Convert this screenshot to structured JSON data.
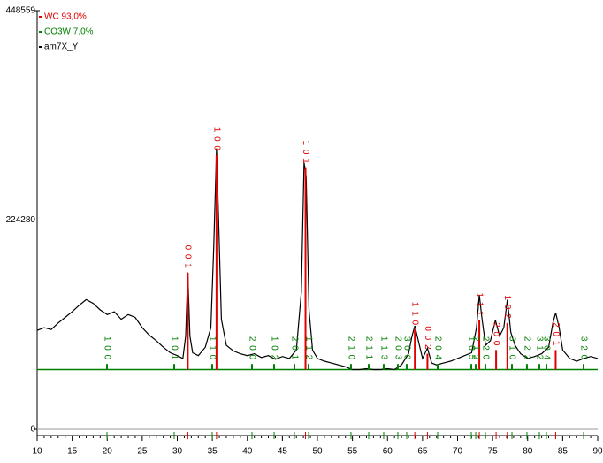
{
  "chart_data": {
    "type": "line",
    "xlim": [
      10,
      90
    ],
    "xticks": [
      10,
      15,
      20,
      25,
      30,
      35,
      40,
      45,
      50,
      55,
      60,
      65,
      70,
      75,
      80,
      85,
      90
    ],
    "ylim": [
      0,
      448559
    ],
    "yticks": [
      0,
      224280,
      448559
    ],
    "background": 64000,
    "background_color": "#008000",
    "series": [
      {
        "name": "am7X_Y",
        "color": "#000000",
        "x": [
          10,
          11,
          12,
          13,
          14,
          15,
          16,
          17,
          18,
          19,
          20,
          21,
          22,
          23,
          24,
          25,
          26,
          27,
          28,
          29,
          30,
          30.8,
          31.2,
          31.5,
          31.8,
          32.2,
          33,
          34,
          34.8,
          35.2,
          35.6,
          35.9,
          36.3,
          37,
          38,
          39,
          40,
          41,
          42,
          43,
          44,
          45,
          46,
          47,
          47.7,
          48.1,
          48.4,
          48.8,
          49.3,
          50,
          51,
          52,
          53,
          54,
          55,
          56,
          57,
          58,
          59,
          60,
          61,
          62,
          63,
          63.5,
          63.9,
          64.4,
          65,
          65.7,
          66.3,
          67,
          68,
          69,
          70,
          71,
          72,
          72.7,
          73.1,
          73.5,
          74,
          74.7,
          75.4,
          76,
          76.6,
          77.1,
          77.6,
          78.2,
          79,
          80,
          81,
          82,
          83,
          83.6,
          84,
          84.5,
          85,
          86,
          87,
          88,
          89,
          90
        ],
        "values": [
          106000,
          109000,
          107000,
          114000,
          120000,
          126000,
          133000,
          139000,
          135000,
          128000,
          123000,
          126000,
          118000,
          123000,
          120000,
          109000,
          101000,
          95000,
          88000,
          82000,
          79000,
          76000,
          100000,
          168000,
          100000,
          82000,
          79000,
          88000,
          109000,
          194000,
          301000,
          223000,
          118000,
          90000,
          84000,
          81000,
          79000,
          81000,
          77000,
          79000,
          75000,
          78000,
          76000,
          85000,
          147000,
          286000,
          270000,
          128000,
          85000,
          76000,
          73000,
          71000,
          69000,
          67000,
          64000,
          64000,
          65000,
          64000,
          64000,
          65000,
          64000,
          69000,
          81000,
          100000,
          111000,
          95000,
          76000,
          87000,
          71000,
          69000,
          71000,
          73000,
          76000,
          79000,
          82000,
          109000,
          144000,
          118000,
          90000,
          95000,
          117000,
          100000,
          109000,
          139000,
          104000,
          90000,
          81000,
          76000,
          78000,
          81000,
          88000,
          114000,
          125000,
          109000,
          85000,
          76000,
          73000,
          76000,
          78000,
          76000
        ]
      }
    ],
    "phases": [
      {
        "name": "WC 93,0%",
        "color": "#e00000",
        "positions": [
          31.5,
          35.6,
          48.3,
          63.9,
          65.7,
          73.1,
          75.5,
          77.1,
          84
        ],
        "values": [
          168000,
          294000,
          280000,
          107000,
          81000,
          117000,
          85000,
          114000,
          85000
        ],
        "hkl": [
          "0 0 1",
          "1 0 0",
          "1 0 1",
          "1 1 0",
          "0 0 2",
          "1 1 1",
          "2 0 0",
          "1 0 2",
          "2 0 1"
        ]
      },
      {
        "name": "CO3W  7,0%",
        "color": "#008000",
        "positions": [
          19.97,
          29.56,
          34.98,
          40.66,
          43.82,
          46.72,
          48.74,
          54.79,
          57.32,
          59.46,
          61.48,
          62.74,
          67.16,
          71.96,
          72.59,
          73.97,
          77.76,
          79.9,
          81.67,
          82.68,
          87.98
        ],
        "values": [
          70000,
          70000,
          70000,
          70000,
          70000,
          70000,
          70000,
          70000,
          70000,
          70000,
          70000,
          70000,
          70000,
          70000,
          70000,
          70000,
          70000,
          70000,
          70000,
          70000,
          70000
        ],
        "hkl": [
          "1 0 0",
          "1 0 1",
          "1 1 0",
          "2 0 0",
          "1 0 2",
          "2 0 1",
          "1 1 2",
          "2 1 0",
          "2 1 1",
          "1 1 3",
          "2 0 3",
          "3 0 0",
          "2 0 4",
          "1 0 5",
          "2 1 3",
          "2 2 0",
          "3 1 0",
          "2 2 2",
          "3 1 2",
          "3 0 4",
          "3 2 0"
        ]
      }
    ]
  }
}
